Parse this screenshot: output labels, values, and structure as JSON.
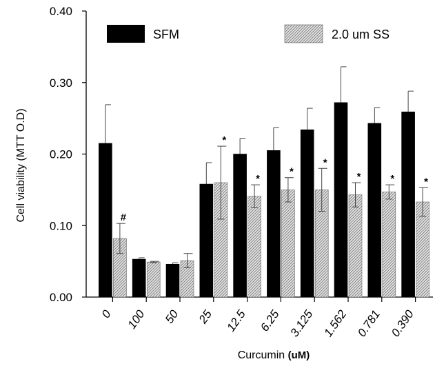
{
  "chart_data": {
    "type": "bar",
    "xlabel": "Curcumin",
    "xlabel_unit": "(uM)",
    "ylabel": "Cell viability (MTT O.D)",
    "ylim": [
      0,
      0.4
    ],
    "yticks": [
      "0.00",
      "0.10",
      "0.20",
      "0.30",
      "0.40"
    ],
    "categories": [
      "0",
      "100",
      "50",
      "25",
      "12.5",
      "6.25",
      "3.125",
      "1.562",
      "0.781",
      "0.390"
    ],
    "series": [
      {
        "name": "SFM",
        "color": "#000000",
        "pattern": "solid",
        "values": [
          0.215,
          0.053,
          0.046,
          0.158,
          0.2,
          0.205,
          0.234,
          0.272,
          0.243,
          0.259
        ],
        "errors": [
          0.054,
          0.002,
          0.002,
          0.03,
          0.022,
          0.032,
          0.03,
          0.05,
          0.022,
          0.029
        ]
      },
      {
        "name": "2.0 um SS",
        "color": "#cccccc",
        "pattern": "crosshatch",
        "values": [
          0.082,
          0.049,
          0.051,
          0.16,
          0.141,
          0.15,
          0.15,
          0.143,
          0.147,
          0.133
        ],
        "errors": [
          0.021,
          0.001,
          0.01,
          0.051,
          0.016,
          0.017,
          0.03,
          0.017,
          0.01,
          0.02
        ]
      }
    ],
    "markers": [
      "#",
      "",
      "",
      "*",
      "*",
      "*",
      "*",
      "*",
      "*",
      "*"
    ],
    "legend_position": "top",
    "grid": false
  }
}
